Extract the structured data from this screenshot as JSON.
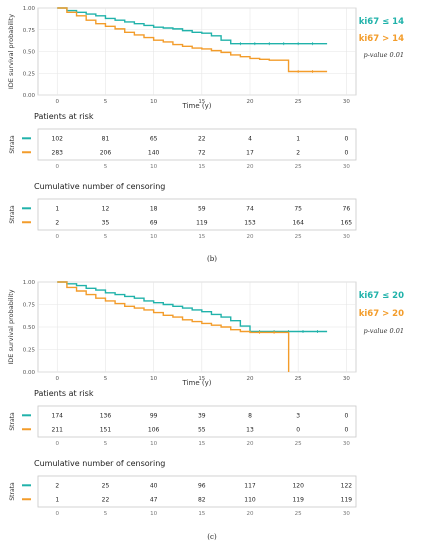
{
  "panels": [
    {
      "caption": "(b)",
      "ylabel": "IDE survival probability",
      "xlabel": "Time (y)",
      "y_ticks": [
        "0.00",
        "0.25",
        "0.50",
        "0.75",
        "1.00"
      ],
      "x_ticks": [
        "0",
        "5",
        "10",
        "15",
        "20",
        "25",
        "30"
      ],
      "legend": [
        "ki67 ≤ 14",
        "ki67 > 14"
      ],
      "pvalue": "p-value 0.01",
      "risk_title": "Patients at risk",
      "censor_title": "Cumulative number of censoring",
      "strata_label": "Strata",
      "risk_rows": [
        [
          "102",
          "81",
          "65",
          "22",
          "4",
          "1",
          "0"
        ],
        [
          "283",
          "206",
          "140",
          "72",
          "17",
          "2",
          "0"
        ]
      ],
      "censor_rows": [
        [
          "1",
          "12",
          "18",
          "59",
          "74",
          "75",
          "76"
        ],
        [
          "2",
          "35",
          "69",
          "119",
          "153",
          "164",
          "165"
        ]
      ]
    },
    {
      "caption": "(c)",
      "ylabel": "IDE survival probability",
      "xlabel": "Time (y)",
      "y_ticks": [
        "0.00",
        "0.25",
        "0.50",
        "0.75",
        "1.00"
      ],
      "x_ticks": [
        "0",
        "5",
        "10",
        "15",
        "20",
        "25",
        "30"
      ],
      "legend": [
        "ki67 ≤ 20",
        "ki67 > 20"
      ],
      "pvalue": "p-value 0.01",
      "risk_title": "Patients at risk",
      "censor_title": "Cumulative number of censoring",
      "strata_label": "Strata",
      "risk_rows": [
        [
          "174",
          "136",
          "99",
          "39",
          "8",
          "3",
          "0"
        ],
        [
          "211",
          "151",
          "106",
          "55",
          "13",
          "0",
          "0"
        ]
      ],
      "censor_rows": [
        [
          "2",
          "25",
          "40",
          "96",
          "117",
          "120",
          "122"
        ],
        [
          "1",
          "22",
          "47",
          "82",
          "110",
          "119",
          "119"
        ]
      ]
    }
  ],
  "colors": {
    "group1": "#20b2aa",
    "group2": "#f39c2a",
    "grid": "#e6e6e6",
    "frame": "#c8c8c8"
  },
  "chart_data": [
    {
      "type": "line",
      "xlim": [
        -2,
        31
      ],
      "ylim": [
        0,
        1
      ],
      "series": [
        {
          "name": "ki67 ≤ 14",
          "x": [
            0,
            1,
            2,
            3,
            4,
            5,
            6,
            7,
            8,
            9,
            10,
            11,
            12,
            13,
            14,
            15,
            16,
            17,
            18,
            28
          ],
          "y": [
            1.0,
            0.97,
            0.95,
            0.93,
            0.91,
            0.88,
            0.86,
            0.84,
            0.82,
            0.8,
            0.78,
            0.77,
            0.76,
            0.74,
            0.72,
            0.71,
            0.68,
            0.63,
            0.59,
            0.59
          ]
        },
        {
          "name": "ki67 > 14",
          "x": [
            0,
            1,
            2,
            3,
            4,
            5,
            6,
            7,
            8,
            9,
            10,
            11,
            12,
            13,
            14,
            15,
            16,
            17,
            18,
            19,
            20,
            21,
            22,
            24,
            28
          ],
          "y": [
            1.0,
            0.95,
            0.91,
            0.86,
            0.82,
            0.79,
            0.76,
            0.72,
            0.69,
            0.66,
            0.63,
            0.61,
            0.58,
            0.56,
            0.54,
            0.53,
            0.51,
            0.49,
            0.46,
            0.44,
            0.42,
            0.41,
            0.4,
            0.27,
            0.27
          ]
        }
      ]
    },
    {
      "type": "line",
      "xlim": [
        -2,
        31
      ],
      "ylim": [
        0,
        1
      ],
      "series": [
        {
          "name": "ki67 ≤ 20",
          "x": [
            0,
            1,
            2,
            3,
            4,
            5,
            6,
            7,
            8,
            9,
            10,
            11,
            12,
            13,
            14,
            15,
            16,
            17,
            18,
            19,
            20,
            28
          ],
          "y": [
            1.0,
            0.98,
            0.96,
            0.93,
            0.91,
            0.88,
            0.86,
            0.84,
            0.82,
            0.79,
            0.77,
            0.75,
            0.73,
            0.71,
            0.69,
            0.67,
            0.64,
            0.61,
            0.57,
            0.51,
            0.45,
            0.45
          ]
        },
        {
          "name": "ki67 > 20",
          "x": [
            0,
            1,
            2,
            3,
            4,
            5,
            6,
            7,
            8,
            9,
            10,
            11,
            12,
            13,
            14,
            15,
            16,
            17,
            18,
            19,
            20,
            24,
            24.01
          ],
          "y": [
            1.0,
            0.94,
            0.9,
            0.86,
            0.82,
            0.79,
            0.76,
            0.73,
            0.71,
            0.69,
            0.66,
            0.63,
            0.61,
            0.58,
            0.56,
            0.54,
            0.52,
            0.5,
            0.47,
            0.45,
            0.44,
            0.44,
            0.0
          ]
        }
      ]
    }
  ]
}
